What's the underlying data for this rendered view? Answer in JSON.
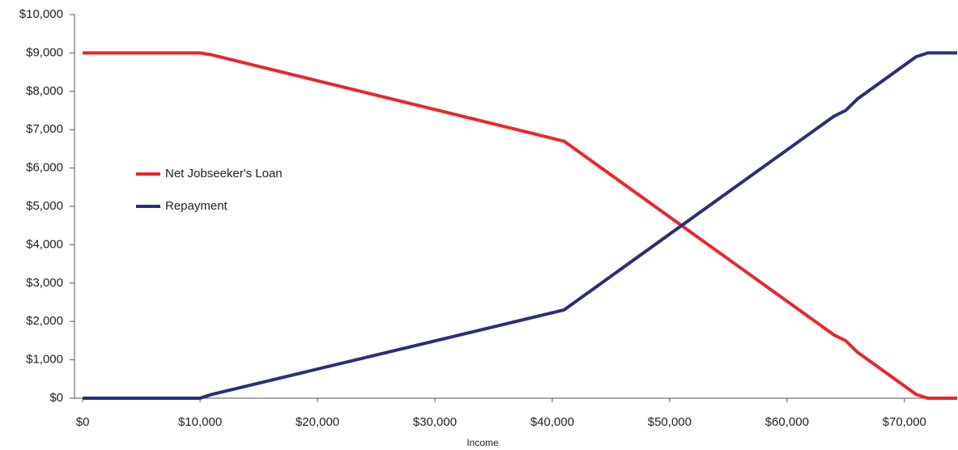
{
  "chart_data": {
    "type": "line",
    "x_label": "Income",
    "xlim": [
      -700,
      74500
    ],
    "xticks": [
      {
        "value": 0,
        "label": "$0"
      },
      {
        "value": 10000,
        "label": "$10,000"
      },
      {
        "value": 20000,
        "label": "$20,000"
      },
      {
        "value": 30000,
        "label": "$30,000"
      },
      {
        "value": 40000,
        "label": "$40,000"
      },
      {
        "value": 50000,
        "label": "$50,000"
      },
      {
        "value": 60000,
        "label": "$60,000"
      },
      {
        "value": 70000,
        "label": "$70,000"
      }
    ],
    "ylim": [
      0,
      10000
    ],
    "yticks": [
      {
        "value": 0,
        "label": "$0"
      },
      {
        "value": 1000,
        "label": "$1,000"
      },
      {
        "value": 2000,
        "label": "$2,000"
      },
      {
        "value": 3000,
        "label": "$3,000"
      },
      {
        "value": 4000,
        "label": "$4,000"
      },
      {
        "value": 5000,
        "label": "$5,000"
      },
      {
        "value": 6000,
        "label": "$6,000"
      },
      {
        "value": 7000,
        "label": "$7,000"
      },
      {
        "value": 8000,
        "label": "$8,000"
      },
      {
        "value": 9000,
        "label": "$9,000"
      },
      {
        "value": 10000,
        "label": "$10,000"
      }
    ],
    "grid": false,
    "x": [
      0,
      10000,
      11000,
      41000,
      64000,
      65000,
      66000,
      71000,
      72000,
      74500
    ],
    "series": [
      {
        "name": "Net Jobseeker's Loan",
        "color": "#e8272d",
        "values": [
          9000,
          9000,
          8950,
          6700,
          1650,
          1500,
          1200,
          100,
          0,
          0
        ]
      },
      {
        "name": "Repayment",
        "color": "#2a2f78",
        "values": [
          0,
          0,
          100,
          2300,
          7350,
          7500,
          7800,
          8900,
          9000,
          9000
        ]
      }
    ]
  }
}
